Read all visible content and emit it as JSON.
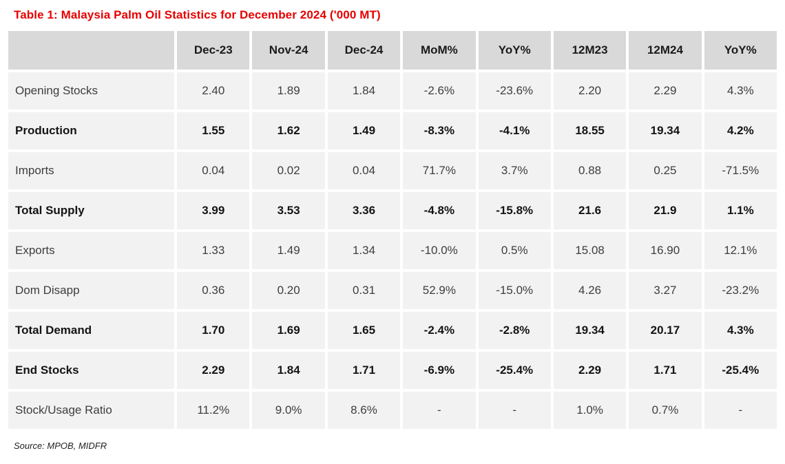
{
  "title": "Table 1: Malaysia Palm Oil Statistics for December 2024 ('000 MT)",
  "source": "Source: MPOB, MIDFR",
  "colors": {
    "title_red": "#e60000",
    "header_bg": "#d9d9d9",
    "row_bg": "#f2f2f2",
    "gap": "#ffffff",
    "text": "#3d3d3d",
    "bold_text": "#141414"
  },
  "chart_data": {
    "type": "table",
    "columns": [
      "",
      "Dec-23",
      "Nov-24",
      "Dec-24",
      "MoM%",
      "YoY%",
      "12M23",
      "12M24",
      "YoY%"
    ],
    "rows": [
      {
        "label": "Opening Stocks",
        "bold": false,
        "values": [
          "2.40",
          "1.89",
          "1.84",
          "-2.6%",
          "-23.6%",
          "2.20",
          "2.29",
          "4.3%"
        ]
      },
      {
        "label": "Production",
        "bold": true,
        "values": [
          "1.55",
          "1.62",
          "1.49",
          "-8.3%",
          "-4.1%",
          "18.55",
          "19.34",
          "4.2%"
        ]
      },
      {
        "label": "Imports",
        "bold": false,
        "values": [
          "0.04",
          "0.02",
          "0.04",
          "71.7%",
          "3.7%",
          "0.88",
          "0.25",
          "-71.5%"
        ]
      },
      {
        "label": "Total Supply",
        "bold": true,
        "values": [
          "3.99",
          "3.53",
          "3.36",
          "-4.8%",
          "-15.8%",
          "21.6",
          "21.9",
          "1.1%"
        ]
      },
      {
        "label": "Exports",
        "bold": false,
        "values": [
          "1.33",
          "1.49",
          "1.34",
          "-10.0%",
          "0.5%",
          "15.08",
          "16.90",
          "12.1%"
        ]
      },
      {
        "label": "Dom Disapp",
        "bold": false,
        "values": [
          "0.36",
          "0.20",
          "0.31",
          "52.9%",
          "-15.0%",
          "4.26",
          "3.27",
          "-23.2%"
        ]
      },
      {
        "label": "Total Demand",
        "bold": true,
        "values": [
          "1.70",
          "1.69",
          "1.65",
          "-2.4%",
          "-2.8%",
          "19.34",
          "20.17",
          "4.3%"
        ]
      },
      {
        "label": "End Stocks",
        "bold": true,
        "values": [
          "2.29",
          "1.84",
          "1.71",
          "-6.9%",
          "-25.4%",
          "2.29",
          "1.71",
          "-25.4%"
        ]
      },
      {
        "label": "Stock/Usage Ratio",
        "bold": false,
        "values": [
          "11.2%",
          "9.0%",
          "8.6%",
          "-",
          "-",
          "1.0%",
          "0.7%",
          "-"
        ]
      }
    ]
  }
}
